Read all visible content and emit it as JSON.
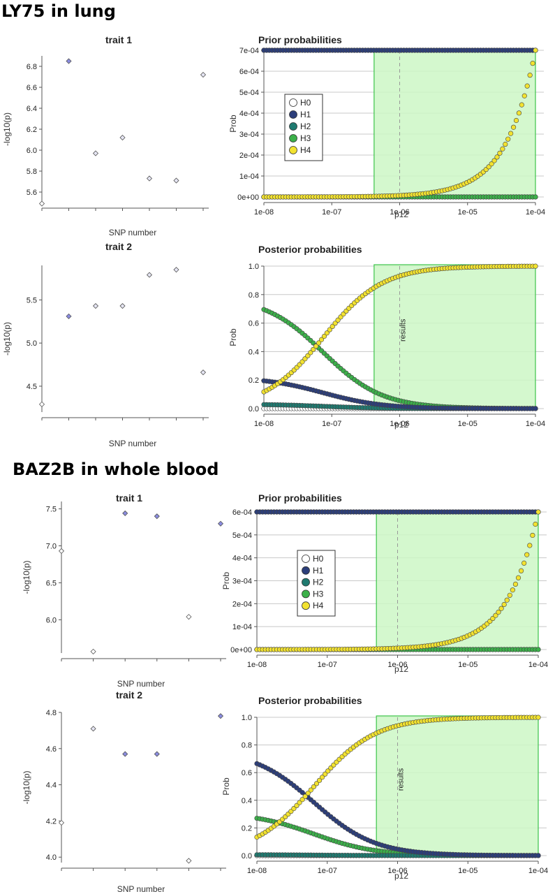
{
  "sections": [
    {
      "title": "LY75 in lung",
      "chart_data": [
        {
          "type": "scatter",
          "title": "trait 1",
          "xlabel": "SNP number",
          "ylabel": "-log10(p)",
          "ylim": [
            5.5,
            6.9
          ],
          "yticks": [
            "5.6",
            "5.8",
            "6.0",
            "6.2",
            "6.4",
            "6.6",
            "6.8"
          ],
          "x": [
            1,
            2,
            3,
            4,
            5,
            6,
            7
          ],
          "values": [
            5.49,
            6.85,
            5.97,
            6.12,
            5.73,
            5.71,
            6.72
          ],
          "point_colors": [
            "#ffffff",
            "#8a8ce0",
            "#e6e6f4",
            "#e6e6f4",
            "#e6e6f4",
            "#e6e6f4",
            "#e6e6f4"
          ]
        },
        {
          "type": "scatter",
          "title": "Prior probabilities",
          "xlabel": "p12",
          "ylabel": "Prob",
          "xscale": "log",
          "xlim": [
            1e-08,
            0.0001
          ],
          "xticks": [
            "1e-08",
            "1e-07",
            "1e-06",
            "1e-05",
            "1e-04"
          ],
          "ylim": [
            0,
            0.0007
          ],
          "yticks": [
            "0e+00",
            "1e-04",
            "2e-04",
            "3e-04",
            "4e-04",
            "5e-04",
            "6e-04",
            "7e-04"
          ],
          "shaded_region": [
            4.2e-07,
            0.0001
          ],
          "vline": 1e-06,
          "legend": {
            "placement": "left",
            "entries": [
              "H0",
              "H1",
              "H2",
              "H3",
              "H4"
            ]
          },
          "series": [
            {
              "name": "H0",
              "color": "#ffffff",
              "fn": "const",
              "value": 0
            },
            {
              "name": "H1",
              "color": "#2c3e7a",
              "fn": "const",
              "value": 0.0007
            },
            {
              "name": "H2",
              "color": "#1f7a70",
              "fn": "const",
              "value": 0.0007
            },
            {
              "name": "H3",
              "color": "#3cb04a",
              "fn": "const",
              "value": 0
            },
            {
              "name": "H4",
              "color": "#f2e230",
              "fn": "linear",
              "scale": 7
            }
          ]
        },
        {
          "type": "scatter",
          "title": "trait 2",
          "xlabel": "SNP number",
          "ylabel": "-log10(p)",
          "ylim": [
            4.2,
            5.9
          ],
          "yticks": [
            "4.5",
            "5.0",
            "5.5"
          ],
          "x": [
            1,
            2,
            3,
            4,
            5,
            6,
            7
          ],
          "values": [
            4.29,
            5.31,
            5.43,
            5.43,
            5.79,
            5.85,
            4.66
          ],
          "point_colors": [
            "#ffffff",
            "#8a8ce0",
            "#e6e6f4",
            "#e6e6f4",
            "#e6e6f4",
            "#e6e6f4",
            "#e6e6f4"
          ]
        },
        {
          "type": "scatter",
          "title": "Posterior probabilities",
          "xlabel": "p12",
          "ylabel": "Prob",
          "xscale": "log",
          "xlim": [
            1e-08,
            0.0001
          ],
          "xticks": [
            "1e-08",
            "1e-07",
            "1e-06",
            "1e-05",
            "1e-04"
          ],
          "ylim": [
            0,
            1
          ],
          "yticks": [
            "0.0",
            "0.2",
            "0.4",
            "0.6",
            "0.8",
            "1.0"
          ],
          "shaded_region": [
            4.2e-07,
            0.0001
          ],
          "vline": 1e-06,
          "vline_label": "results",
          "series": [
            {
              "name": "H0",
              "color": "#ffffff",
              "fn": "const",
              "value": 0.0
            },
            {
              "name": "H1",
              "color": "#2c3e7a",
              "fn": "decay",
              "start": 0.195
            },
            {
              "name": "H2",
              "color": "#1f7a70",
              "fn": "decay",
              "start": 0.028
            },
            {
              "name": "H3",
              "color": "#3cb04a",
              "fn": "decay",
              "start": 0.695
            },
            {
              "name": "H4",
              "color": "#f2e230",
              "fn": "post",
              "k": 13.3
            }
          ]
        }
      ]
    },
    {
      "title": "BAZ2B in whole blood",
      "chart_data": [
        {
          "type": "scatter",
          "title": "trait 1",
          "xlabel": "SNP number",
          "ylabel": "-log10(p)",
          "ylim": [
            5.55,
            7.6
          ],
          "yticks": [
            "6.0",
            "6.5",
            "7.0",
            "7.5"
          ],
          "x": [
            1,
            2,
            3,
            4,
            5,
            6
          ],
          "values": [
            6.93,
            5.57,
            7.44,
            7.4,
            6.04,
            7.3
          ],
          "point_colors": [
            "#ffffff",
            "#ffffff",
            "#8a8ce0",
            "#8a8ce0",
            "#ffffff",
            "#8a8ce0"
          ]
        },
        {
          "type": "scatter",
          "title": "Prior probabilities",
          "xlabel": "p12",
          "ylabel": "Prob",
          "xscale": "log",
          "xlim": [
            1e-08,
            0.0001
          ],
          "xticks": [
            "1e-08",
            "1e-07",
            "1e-06",
            "1e-05",
            "1e-04"
          ],
          "ylim": [
            0,
            0.0006
          ],
          "yticks": [
            "0e+00",
            "1e-04",
            "2e-04",
            "3e-04",
            "4e-04",
            "5e-04",
            "6e-04"
          ],
          "shaded_region": [
            5e-07,
            0.0001
          ],
          "vline": 1e-06,
          "legend": {
            "placement": "left",
            "entries": [
              "H0",
              "H1",
              "H2",
              "H3",
              "H4"
            ]
          },
          "series": [
            {
              "name": "H0",
              "color": "#ffffff",
              "fn": "const",
              "value": 0
            },
            {
              "name": "H1",
              "color": "#2c3e7a",
              "fn": "const",
              "value": 0.0006
            },
            {
              "name": "H2",
              "color": "#1f7a70",
              "fn": "const",
              "value": 0.0006
            },
            {
              "name": "H3",
              "color": "#3cb04a",
              "fn": "const",
              "value": 0
            },
            {
              "name": "H4",
              "color": "#f2e230",
              "fn": "linear",
              "scale": 6
            }
          ]
        },
        {
          "type": "scatter",
          "title": "trait 2",
          "xlabel": "SNP number",
          "ylabel": "-log10(p)",
          "ylim": [
            3.97,
            4.8
          ],
          "yticks": [
            "4.0",
            "4.2",
            "4.4",
            "4.6",
            "4.8"
          ],
          "x": [
            1,
            2,
            3,
            4,
            5,
            6
          ],
          "values": [
            4.19,
            4.71,
            4.57,
            4.57,
            3.98,
            4.78
          ],
          "point_colors": [
            "#ffffff",
            "#e6e6f4",
            "#8a8ce0",
            "#8a8ce0",
            "#ffffff",
            "#8a8ce0"
          ]
        },
        {
          "type": "scatter",
          "title": "Posterior probabilities",
          "xlabel": "p12",
          "ylabel": "Prob",
          "xscale": "log",
          "xlim": [
            1e-08,
            0.0001
          ],
          "xticks": [
            "1e-08",
            "1e-07",
            "1e-06",
            "1e-05",
            "1e-04"
          ],
          "ylim": [
            0,
            1
          ],
          "yticks": [
            "0.0",
            "0.2",
            "0.4",
            "0.6",
            "0.8",
            "1.0"
          ],
          "shaded_region": [
            5e-07,
            0.0001
          ],
          "vline": 1e-06,
          "vline_label": "results",
          "series": [
            {
              "name": "H0",
              "color": "#ffffff",
              "fn": "const",
              "value": 0.0
            },
            {
              "name": "H1",
              "color": "#2c3e7a",
              "fn": "decay",
              "start": 0.665
            },
            {
              "name": "H2",
              "color": "#1f7a70",
              "fn": "decay",
              "start": 0.006
            },
            {
              "name": "H3",
              "color": "#3cb04a",
              "fn": "decay",
              "start": 0.27
            },
            {
              "name": "H4",
              "color": "#f2e230",
              "fn": "post",
              "k": 15.4
            }
          ]
        }
      ]
    }
  ]
}
